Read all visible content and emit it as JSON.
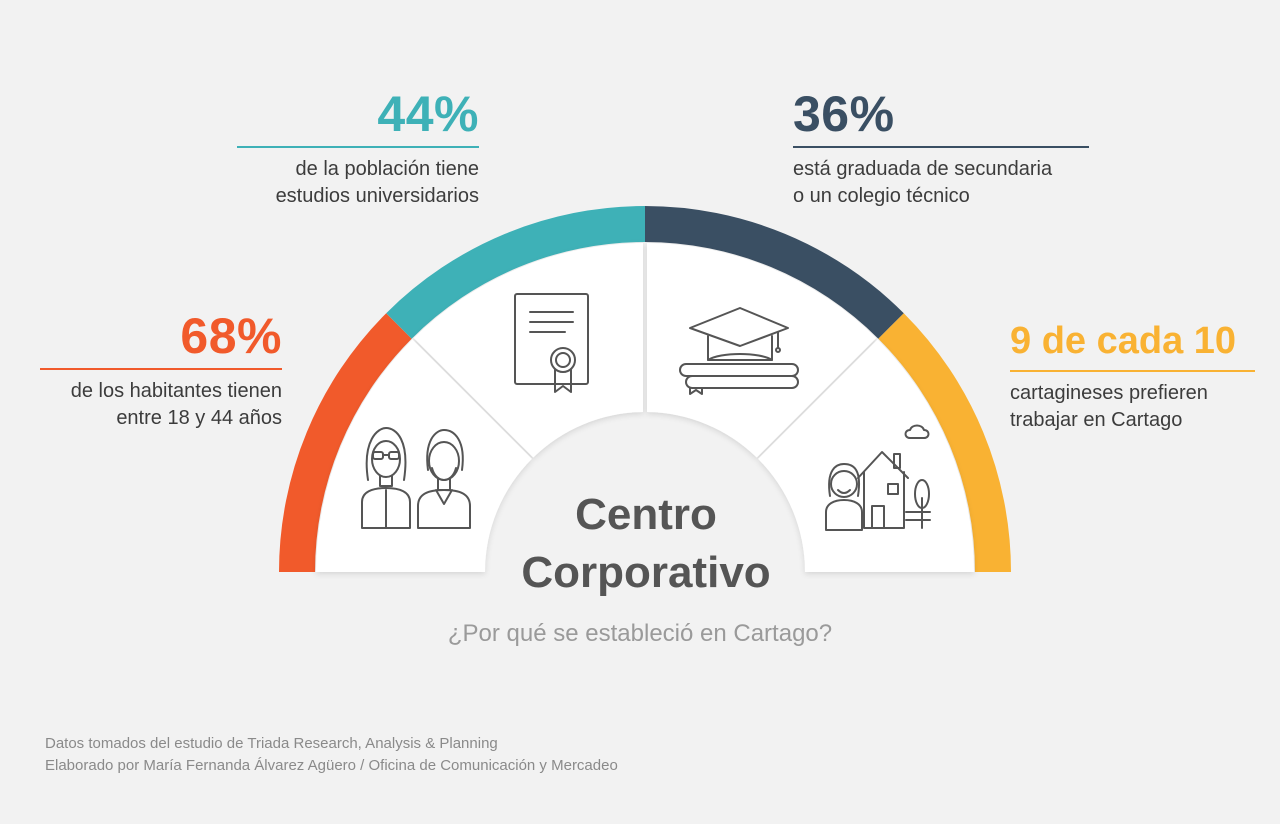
{
  "colors": {
    "orange": "#f15a2b",
    "teal": "#3eb1b7",
    "navy": "#3a4f63",
    "yellow": "#f9b233",
    "panel": "#ffffff",
    "icon": "#555555"
  },
  "stats": [
    {
      "value": "68%",
      "desc_line1": "de los habitantes tienen",
      "desc_line2": "entre 18 y 44 años",
      "color": "#f15a2b",
      "icon": "couple-icon"
    },
    {
      "value": "44%",
      "desc_line1": "de la población tiene",
      "desc_line2": "estudios universidarios",
      "color": "#3eb1b7",
      "icon": "diploma-icon"
    },
    {
      "value": "36%",
      "desc_line1": "está graduada de secundaria",
      "desc_line2": "o un colegio técnico",
      "color": "#3a4f63",
      "icon": "graduation-cap-icon"
    },
    {
      "value": "9 de cada 10",
      "desc_line1": "cartagineses prefieren",
      "desc_line2": "trabajar en Cartago",
      "color": "#f9b233",
      "icon": "woman-home-icon"
    }
  ],
  "title": {
    "line1": "Centro",
    "line2": "Corporativo"
  },
  "subtitle": "¿Por qué se estableció en Cartago?",
  "footer": {
    "line1": "Datos tomados del estudio de Triada Research, Analysis & Planning",
    "line2": "Elaborado por María Fernanda Álvarez Agüero / Oficina de Comunicación y Mercadeo"
  }
}
